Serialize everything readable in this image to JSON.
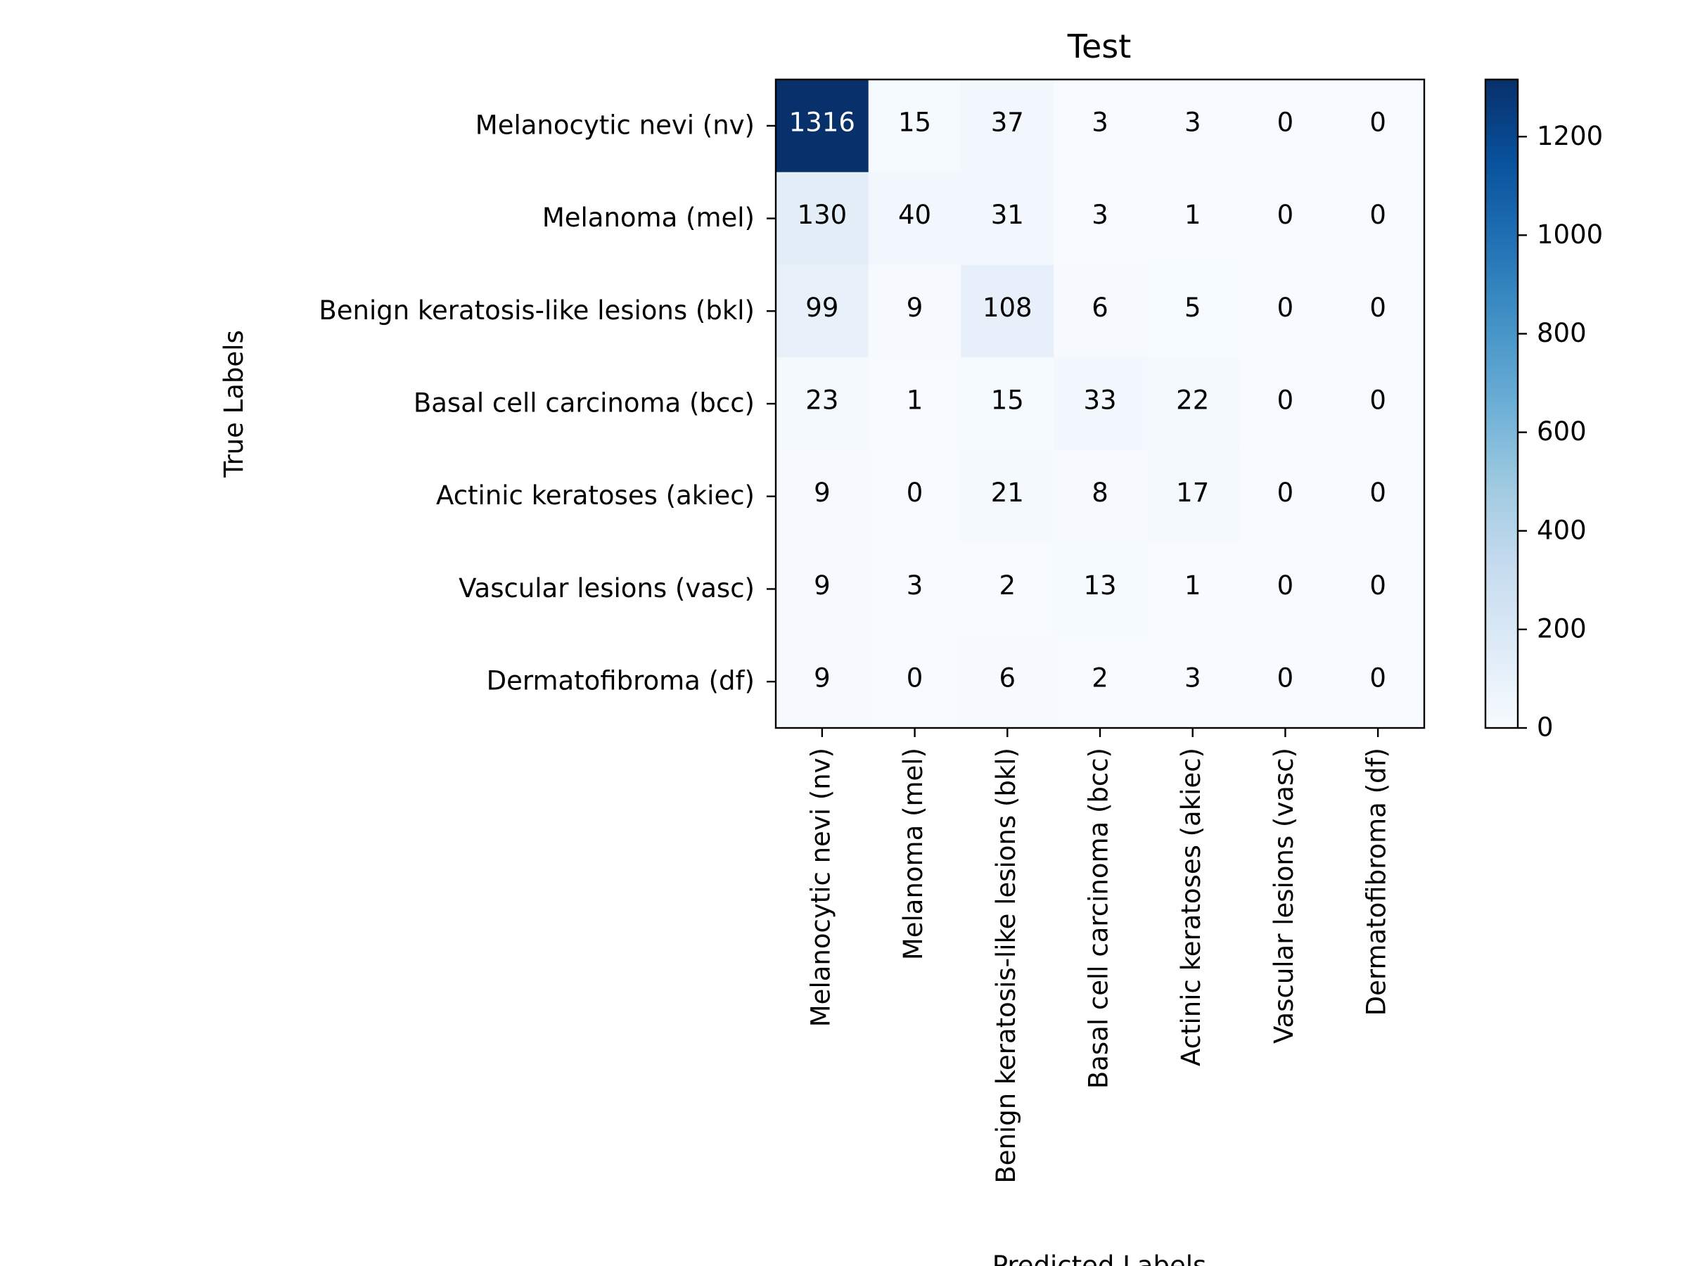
{
  "chart_data": {
    "type": "heatmap",
    "title": "Test",
    "xlabel": "Predicted Labels",
    "ylabel": "True Labels",
    "colormap": "Blues",
    "x_categories": [
      "Melanocytic nevi (nv)",
      "Melanoma (mel)",
      "Benign keratosis-like lesions (bkl)",
      "Basal cell carcinoma (bcc)",
      "Actinic keratoses (akiec)",
      "Vascular lesions (vasc)",
      "Dermatofibroma (df)"
    ],
    "y_categories": [
      "Melanocytic nevi (nv)",
      "Melanoma (mel)",
      "Benign keratosis-like lesions (bkl)",
      "Basal cell carcinoma (bcc)",
      "Actinic keratoses (akiec)",
      "Vascular lesions (vasc)",
      "Dermatofibroma (df)"
    ],
    "values": [
      [
        1316,
        15,
        37,
        3,
        3,
        0,
        0
      ],
      [
        130,
        40,
        31,
        3,
        1,
        0,
        0
      ],
      [
        99,
        9,
        108,
        6,
        5,
        0,
        0
      ],
      [
        23,
        1,
        15,
        33,
        22,
        0,
        0
      ],
      [
        9,
        0,
        21,
        8,
        17,
        0,
        0
      ],
      [
        9,
        3,
        2,
        13,
        1,
        0,
        0
      ],
      [
        9,
        0,
        6,
        2,
        3,
        0,
        0
      ]
    ],
    "colorbar": {
      "min": 0,
      "max": 1316,
      "ticks": [
        0,
        200,
        400,
        600,
        800,
        1000,
        1200
      ]
    },
    "grid": false
  }
}
